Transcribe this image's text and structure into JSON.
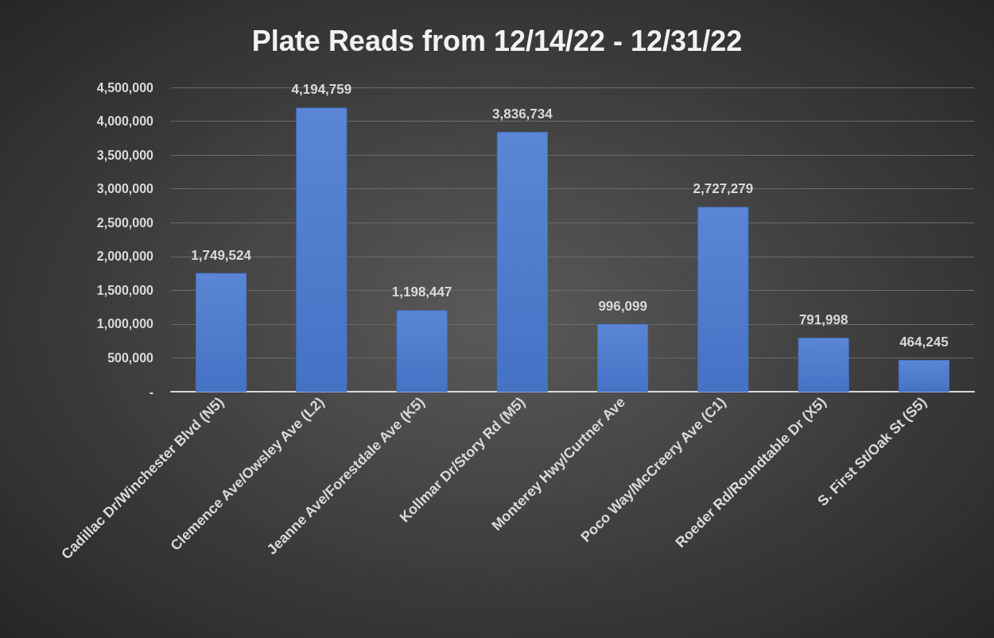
{
  "chart_data": {
    "type": "bar",
    "title": "Plate Reads from 12/14/22 - 12/31/22",
    "categories": [
      "Cadillac Dr/Winchester Blvd (N5)",
      "Clemence Ave/Owsley Ave (L2)",
      "Jeanne Ave/Forestdale Ave (K5)",
      "Kollmar Dr/Story Rd (M5)",
      "Monterey Hwy/Curtner Ave",
      "Poco Way/McCreery Ave (C1)",
      "Roeder Rd/Roundtable Dr (X5)",
      "S. First St/Oak St (S5)"
    ],
    "values": [
      1749524,
      4194759,
      1198447,
      3836734,
      996099,
      2727279,
      791998,
      464245
    ],
    "value_labels": [
      "1,749,524",
      "4,194,759",
      "1,198,447",
      "3,836,734",
      "996,099",
      "2,727,279",
      "791,998",
      "464,245"
    ],
    "color": "#4472c4",
    "ylim": [
      0,
      4500000
    ],
    "yticks": [
      {
        "value": 0,
        "label": "-"
      },
      {
        "value": 500000,
        "label": "500,000"
      },
      {
        "value": 1000000,
        "label": "1,000,000"
      },
      {
        "value": 1500000,
        "label": "1,500,000"
      },
      {
        "value": 2000000,
        "label": "2,000,000"
      },
      {
        "value": 2500000,
        "label": "2,500,000"
      },
      {
        "value": 3000000,
        "label": "3,000,000"
      },
      {
        "value": 3500000,
        "label": "3,500,000"
      },
      {
        "value": 4000000,
        "label": "4,000,000"
      },
      {
        "value": 4500000,
        "label": "4,500,000"
      }
    ],
    "grid": "y"
  }
}
